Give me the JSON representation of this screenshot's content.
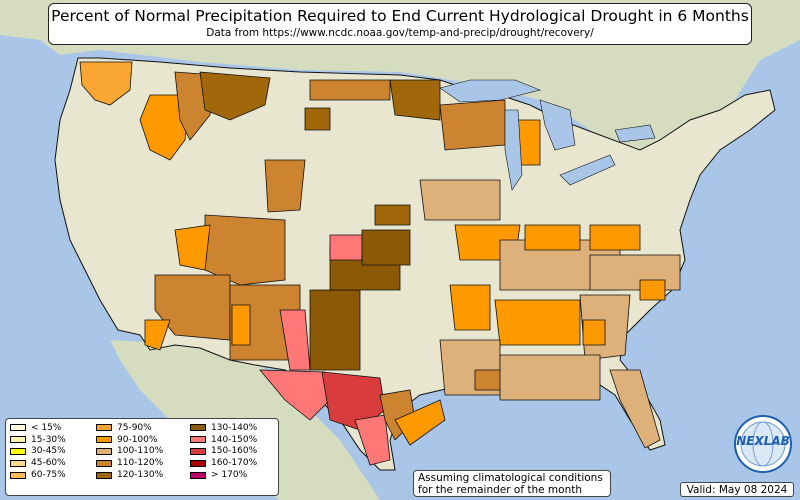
{
  "header": {
    "title": "Percent of Normal Precipitation Required to End Current Hydrological Drought in 6 Months",
    "subtitle": "Data from https://www.ncdc.noaa.gov/temp-and-precip/drought/recovery/"
  },
  "legend": {
    "items": [
      {
        "label": "< 15%",
        "color": "#fffbe0"
      },
      {
        "label": "15-30%",
        "color": "#fff4b0"
      },
      {
        "label": "30-45%",
        "color": "#ffff00"
      },
      {
        "label": "45-60%",
        "color": "#fdd98d"
      },
      {
        "label": "60-75%",
        "color": "#fdb857"
      },
      {
        "label": "75-90%",
        "color": "#f9a633"
      },
      {
        "label": "90-100%",
        "color": "#ff9900"
      },
      {
        "label": "100-110%",
        "color": "#deb07a"
      },
      {
        "label": "110-120%",
        "color": "#cd8430"
      },
      {
        "label": "120-130%",
        "color": "#a0680a"
      },
      {
        "label": "130-140%",
        "color": "#8c5a06"
      },
      {
        "label": "140-150%",
        "color": "#ff7777"
      },
      {
        "label": "150-160%",
        "color": "#d93c3c"
      },
      {
        "label": "160-170%",
        "color": "#a80000"
      },
      {
        "label": "> 170%",
        "color": "#c0006a"
      }
    ]
  },
  "note": {
    "line1": "Assuming climatological conditions",
    "line2": "for the remainder of the month"
  },
  "valid": "Valid: May 08 2024",
  "logo": {
    "text": "NEXLAB",
    "icon": "nexlab-globe-logo"
  },
  "map": {
    "colors": {
      "ocean": "#a9c6e8",
      "land": "#e7e8d0",
      "neighbor_land": "#d9dcc0",
      "border": "#111111"
    }
  }
}
